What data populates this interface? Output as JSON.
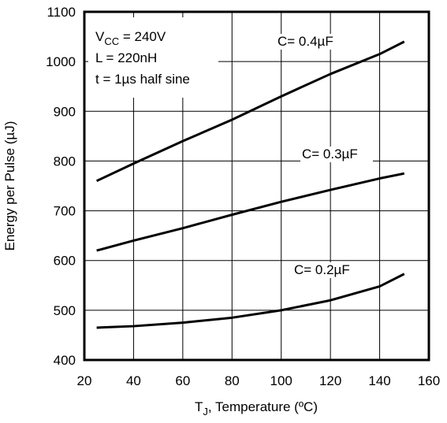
{
  "chart_data": {
    "type": "line",
    "y_label": "Energy per Pulse (µJ)",
    "x_label": {
      "main": "T",
      "sub": "J",
      "tail": ", Temperature (ºC)"
    },
    "conditions": [
      {
        "main": "V",
        "sub": "CC",
        "tail": " = 240V"
      },
      {
        "main": "L = 220nH"
      },
      {
        "main": "t = 1µs half sine"
      }
    ],
    "x": [
      25,
      40,
      60,
      80,
      100,
      120,
      140,
      150
    ],
    "series": [
      {
        "name": "C= 0.4µF",
        "color": "#000000",
        "values": [
          760,
          795,
          840,
          883,
          930,
          975,
          1015,
          1040
        ]
      },
      {
        "name": "C= 0.3µF",
        "color": "#000000",
        "values": [
          620,
          640,
          665,
          692,
          718,
          742,
          765,
          775
        ]
      },
      {
        "name": "C= 0.2µF",
        "color": "#000000",
        "values": [
          465,
          468,
          475,
          485,
          500,
          520,
          548,
          573
        ]
      }
    ],
    "xlim": [
      20,
      160
    ],
    "ylim": [
      400,
      1100
    ],
    "xticks": [
      20,
      40,
      60,
      80,
      100,
      120,
      140,
      160
    ],
    "yticks": [
      400,
      500,
      600,
      700,
      800,
      900,
      1000,
      1100
    ],
    "grid": true
  }
}
